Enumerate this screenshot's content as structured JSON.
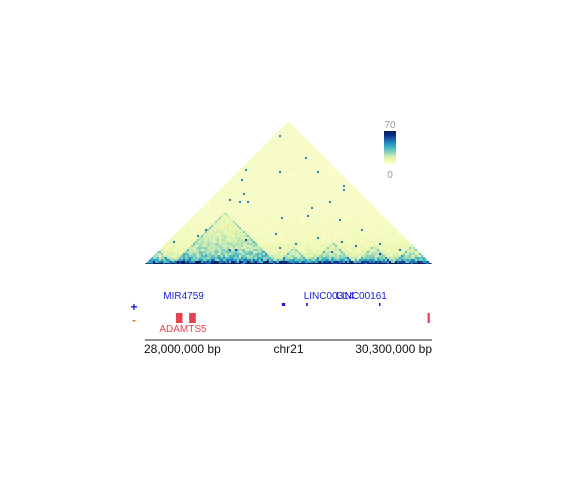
{
  "chart_data": {
    "type": "heatmap",
    "subtype": "hic-contact-triangle",
    "chromosome": "chr21",
    "region_bp": [
      27800000,
      30400000
    ],
    "axis_tick_labels": [
      "28,000,000 bp",
      "30,300,000 bp"
    ],
    "axis_tick_positions_bp": [
      28000000,
      30300000
    ],
    "color_scale": {
      "min": 0,
      "max": 70,
      "min_label": "0",
      "max_label": "70",
      "colormap": "YlGnBu",
      "stops": [
        "#ffffd9",
        "#edf8b1",
        "#c7e9b4",
        "#7fcdbb",
        "#41b6c4",
        "#1d91c0",
        "#225ea8",
        "#0c2c84",
        "#081d58"
      ]
    },
    "domains_bp": [
      [
        27800000,
        28050000
      ],
      [
        28050000,
        29000000
      ],
      [
        29000000,
        29300000
      ],
      [
        29300000,
        29700000
      ],
      [
        29700000,
        30050000
      ],
      [
        30050000,
        30400000
      ]
    ],
    "strand_labels": {
      "plus": "+",
      "minus": "-"
    },
    "strand_colors": {
      "plus": "#1a1adc",
      "minus": "#e84050"
    },
    "genes": [
      {
        "name": "MIR4759",
        "strand": "+",
        "start_bp": 28020000,
        "end_bp": 28025000,
        "show_label": true,
        "show_feature": false
      },
      {
        "name": "LINC00314",
        "strand": "+",
        "start_bp": 29040000,
        "end_bp": 29070000,
        "show_label": false,
        "show_feature": true
      },
      {
        "name": "LINC00314",
        "strand": "+",
        "start_bp": 29260000,
        "end_bp": 29275000,
        "show_label": true,
        "show_feature": true
      },
      {
        "name": "LINC00161",
        "strand": "+",
        "start_bp": 29920000,
        "end_bp": 29930000,
        "show_label": true,
        "show_feature": true
      },
      {
        "name": "ADAMTS5",
        "strand": "-",
        "start_bp": 28080000,
        "end_bp": 28140000,
        "show_label": true,
        "show_feature": true
      },
      {
        "name": "ADAMTS5",
        "strand": "-",
        "start_bp": 28200000,
        "end_bp": 28260000,
        "show_label": false,
        "show_feature": true
      },
      {
        "name": "",
        "strand": "-",
        "start_bp": 30360000,
        "end_bp": 30380000,
        "show_label": false,
        "show_feature": true
      }
    ]
  }
}
